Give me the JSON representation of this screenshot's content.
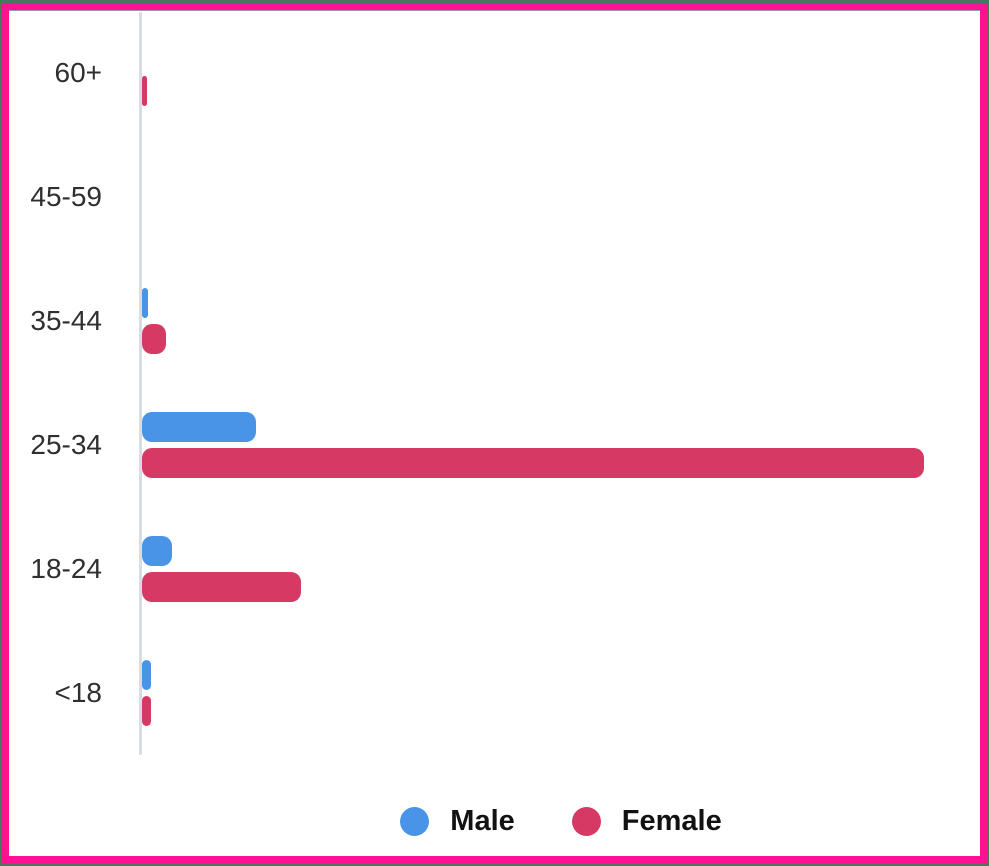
{
  "frame": {
    "outer_edge_color": "#46795a",
    "border_color": "#ff1196",
    "canvas_color": "#ffffff"
  },
  "chart_data": {
    "type": "bar",
    "orientation": "horizontal",
    "title": "",
    "xlabel": "",
    "ylabel": "",
    "categories": [
      "60+",
      "45-59",
      "35-44",
      "25-34",
      "18-24",
      "<18"
    ],
    "series": [
      {
        "name": "Male",
        "color": "#4a94e8",
        "values": [
          0,
          0,
          0.8,
          14.6,
          3.8,
          1.2
        ]
      },
      {
        "name": "Female",
        "color": "#d63a64",
        "values": [
          0.6,
          0,
          3.1,
          100,
          20.3,
          1.2
        ]
      }
    ],
    "value_scale": "relative units: percent of the longest bar (no numeric axis labels are shown in the chart)",
    "xlim": [
      0,
      100
    ],
    "grid": false,
    "axis_line_color": "#d9dce5",
    "legend_position": "bottom-center"
  }
}
